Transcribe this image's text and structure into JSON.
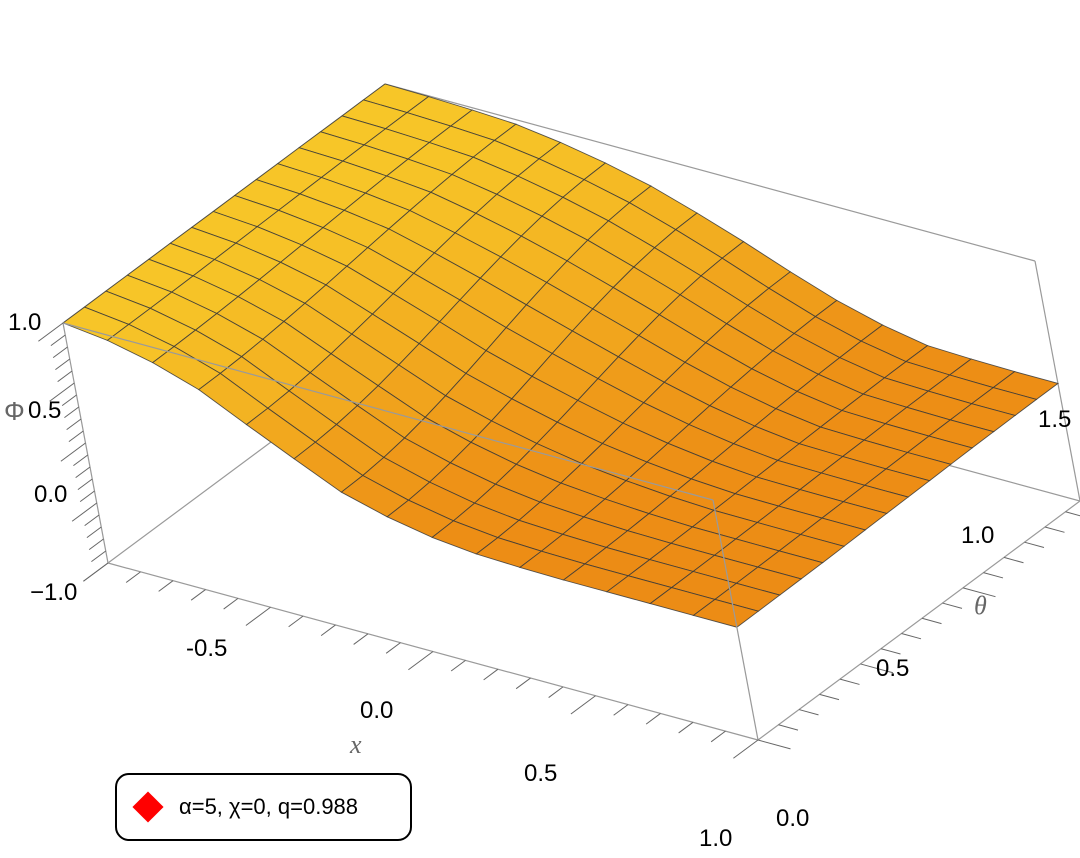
{
  "chart_data": {
    "type": "surface3d",
    "xlabel": "x",
    "ylabel": "θ",
    "zlabel": "Φ",
    "xlim": [
      -1,
      1
    ],
    "ylim": [
      0,
      1.5708
    ],
    "zlim": [
      -1,
      1
    ],
    "x_ticks": [
      "-0.5",
      "0.0",
      "0.5",
      "1.0"
    ],
    "y_ticks": [
      "0.0",
      "0.5",
      "1.0",
      "1.5"
    ],
    "z_ticks": [
      "1.0",
      "0.5",
      "0.0",
      "−1.0"
    ],
    "x_tick_values": [
      -0.5,
      0.0,
      0.5,
      1.0
    ],
    "y_tick_values": [
      0.0,
      0.5,
      1.0,
      1.5
    ],
    "z_tick_values": [
      1.0,
      0.5,
      0.0,
      -1.0
    ],
    "surface_color": "#f7b21f",
    "dark_color": "#ef8a14",
    "mesh_color": "#3a3a3a",
    "box_color": "#9a9a9a",
    "mesh_rows": 15,
    "mesh_cols": 15,
    "x_samples": [
      -1.0,
      -0.8,
      -0.6,
      -0.4,
      -0.2,
      0.0,
      0.2,
      0.4,
      0.6,
      0.8,
      1.0
    ],
    "phi_at_theta_0": [
      1.0,
      0.93,
      0.74,
      0.45,
      0.18,
      0.02,
      -0.04,
      -0.06,
      -0.06,
      -0.06,
      -0.06
    ],
    "phi_at_theta_1_57": [
      1.0,
      0.99,
      0.96,
      0.88,
      0.74,
      0.55,
      0.32,
      0.11,
      0.0,
      -0.02,
      -0.02
    ],
    "legend": {
      "marker_color": "#ff0000",
      "label": "α=5, χ=0, q=0.988"
    }
  }
}
